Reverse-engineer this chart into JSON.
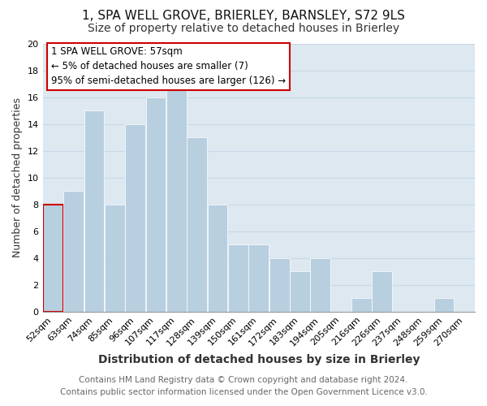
{
  "title": "1, SPA WELL GROVE, BRIERLEY, BARNSLEY, S72 9LS",
  "subtitle": "Size of property relative to detached houses in Brierley",
  "xlabel": "Distribution of detached houses by size in Brierley",
  "ylabel": "Number of detached properties",
  "footer_line1": "Contains HM Land Registry data © Crown copyright and database right 2024.",
  "footer_line2": "Contains public sector information licensed under the Open Government Licence v3.0.",
  "bin_labels": [
    "52sqm",
    "63sqm",
    "74sqm",
    "85sqm",
    "96sqm",
    "107sqm",
    "117sqm",
    "128sqm",
    "139sqm",
    "150sqm",
    "161sqm",
    "172sqm",
    "183sqm",
    "194sqm",
    "205sqm",
    "216sqm",
    "226sqm",
    "237sqm",
    "248sqm",
    "259sqm",
    "270sqm"
  ],
  "bar_values": [
    8,
    9,
    15,
    8,
    14,
    16,
    17,
    13,
    8,
    5,
    5,
    4,
    3,
    4,
    0,
    1,
    3,
    0,
    0,
    1,
    0
  ],
  "bar_color": "#b8cfe0",
  "highlight_bar_index": 0,
  "highlight_border_color": "#cc0000",
  "ylim": [
    0,
    20
  ],
  "yticks": [
    0,
    2,
    4,
    6,
    8,
    10,
    12,
    14,
    16,
    18,
    20
  ],
  "annotation_text_line1": "1 SPA WELL GROVE: 57sqm",
  "annotation_text_line2": "← 5% of detached houses are smaller (7)",
  "annotation_text_line3": "95% of semi-detached houses are larger (126) →",
  "annotation_box_color": "#ffffff",
  "annotation_border_color": "#cc0000",
  "grid_color": "#c8d8e8",
  "plot_bg_color": "#dde8f0",
  "fig_bg_color": "#ffffff",
  "title_fontsize": 11,
  "subtitle_fontsize": 10,
  "xlabel_fontsize": 10,
  "ylabel_fontsize": 9,
  "tick_fontsize": 8,
  "footer_fontsize": 7.5
}
